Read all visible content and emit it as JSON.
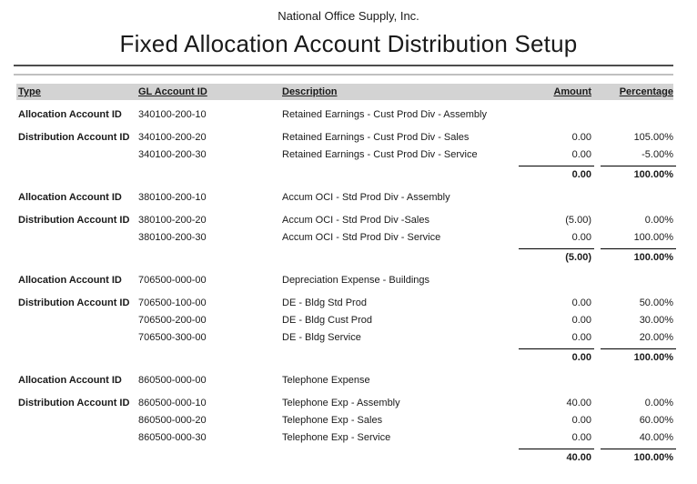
{
  "report": {
    "company": "National Office Supply, Inc.",
    "title": "Fixed Allocation Account Distribution Setup"
  },
  "colors": {
    "header_bar": "#d3d3d3",
    "rule_dark": "#4d4d4d",
    "rule_light": "#c0c0c0",
    "text": "#1a1a1a"
  },
  "table": {
    "headers": {
      "type": "Type",
      "gl_account_id": "GL Account ID",
      "description": "Description",
      "amount": "Amount",
      "percentage": "Percentage"
    },
    "sections": [
      {
        "allocation": {
          "type": "Allocation Account ID",
          "account": "340100-200-10",
          "description": "Retained Earnings - Cust Prod Div - Assembly"
        },
        "distributions": [
          {
            "type": "Distribution Account ID",
            "account": "340100-200-20",
            "description": "Retained Earnings - Cust Prod Div - Sales",
            "amount": "0.00",
            "percentage": "105.00%"
          },
          {
            "type": "",
            "account": "340100-200-30",
            "description": "Retained Earnings - Cust Prod Div - Service",
            "amount": "0.00",
            "percentage": "-5.00%"
          }
        ],
        "total": {
          "amount": "0.00",
          "percentage": "100.00%"
        }
      },
      {
        "allocation": {
          "type": "Allocation Account ID",
          "account": "380100-200-10",
          "description": "Accum OCI - Std Prod Div - Assembly"
        },
        "distributions": [
          {
            "type": "Distribution Account ID",
            "account": "380100-200-20",
            "description": "Accum OCI - Std Prod Div -Sales",
            "amount": "(5.00)",
            "percentage": "0.00%"
          },
          {
            "type": "",
            "account": "380100-200-30",
            "description": "Accum OCI - Std Prod Div - Service",
            "amount": "0.00",
            "percentage": "100.00%"
          }
        ],
        "total": {
          "amount": "(5.00)",
          "percentage": "100.00%"
        }
      },
      {
        "allocation": {
          "type": "Allocation Account ID",
          "account": "706500-000-00",
          "description": "Depreciation Expense - Buildings"
        },
        "distributions": [
          {
            "type": "Distribution Account ID",
            "account": "706500-100-00",
            "description": "DE - Bldg Std Prod",
            "amount": "0.00",
            "percentage": "50.00%"
          },
          {
            "type": "",
            "account": "706500-200-00",
            "description": "DE - Bldg Cust Prod",
            "amount": "0.00",
            "percentage": "30.00%"
          },
          {
            "type": "",
            "account": "706500-300-00",
            "description": "DE - Bldg Service",
            "amount": "0.00",
            "percentage": "20.00%"
          }
        ],
        "total": {
          "amount": "0.00",
          "percentage": "100.00%"
        }
      },
      {
        "allocation": {
          "type": "Allocation Account ID",
          "account": "860500-000-00",
          "description": "Telephone Expense"
        },
        "distributions": [
          {
            "type": "Distribution Account ID",
            "account": "860500-000-10",
            "description": "Telephone Exp - Assembly",
            "amount": "40.00",
            "percentage": "0.00%"
          },
          {
            "type": "",
            "account": "860500-000-20",
            "description": "Telephone Exp - Sales",
            "amount": "0.00",
            "percentage": "60.00%"
          },
          {
            "type": "",
            "account": "860500-000-30",
            "description": "Telephone Exp - Service",
            "amount": "0.00",
            "percentage": "40.00%"
          }
        ],
        "total": {
          "amount": "40.00",
          "percentage": "100.00%"
        }
      }
    ]
  }
}
